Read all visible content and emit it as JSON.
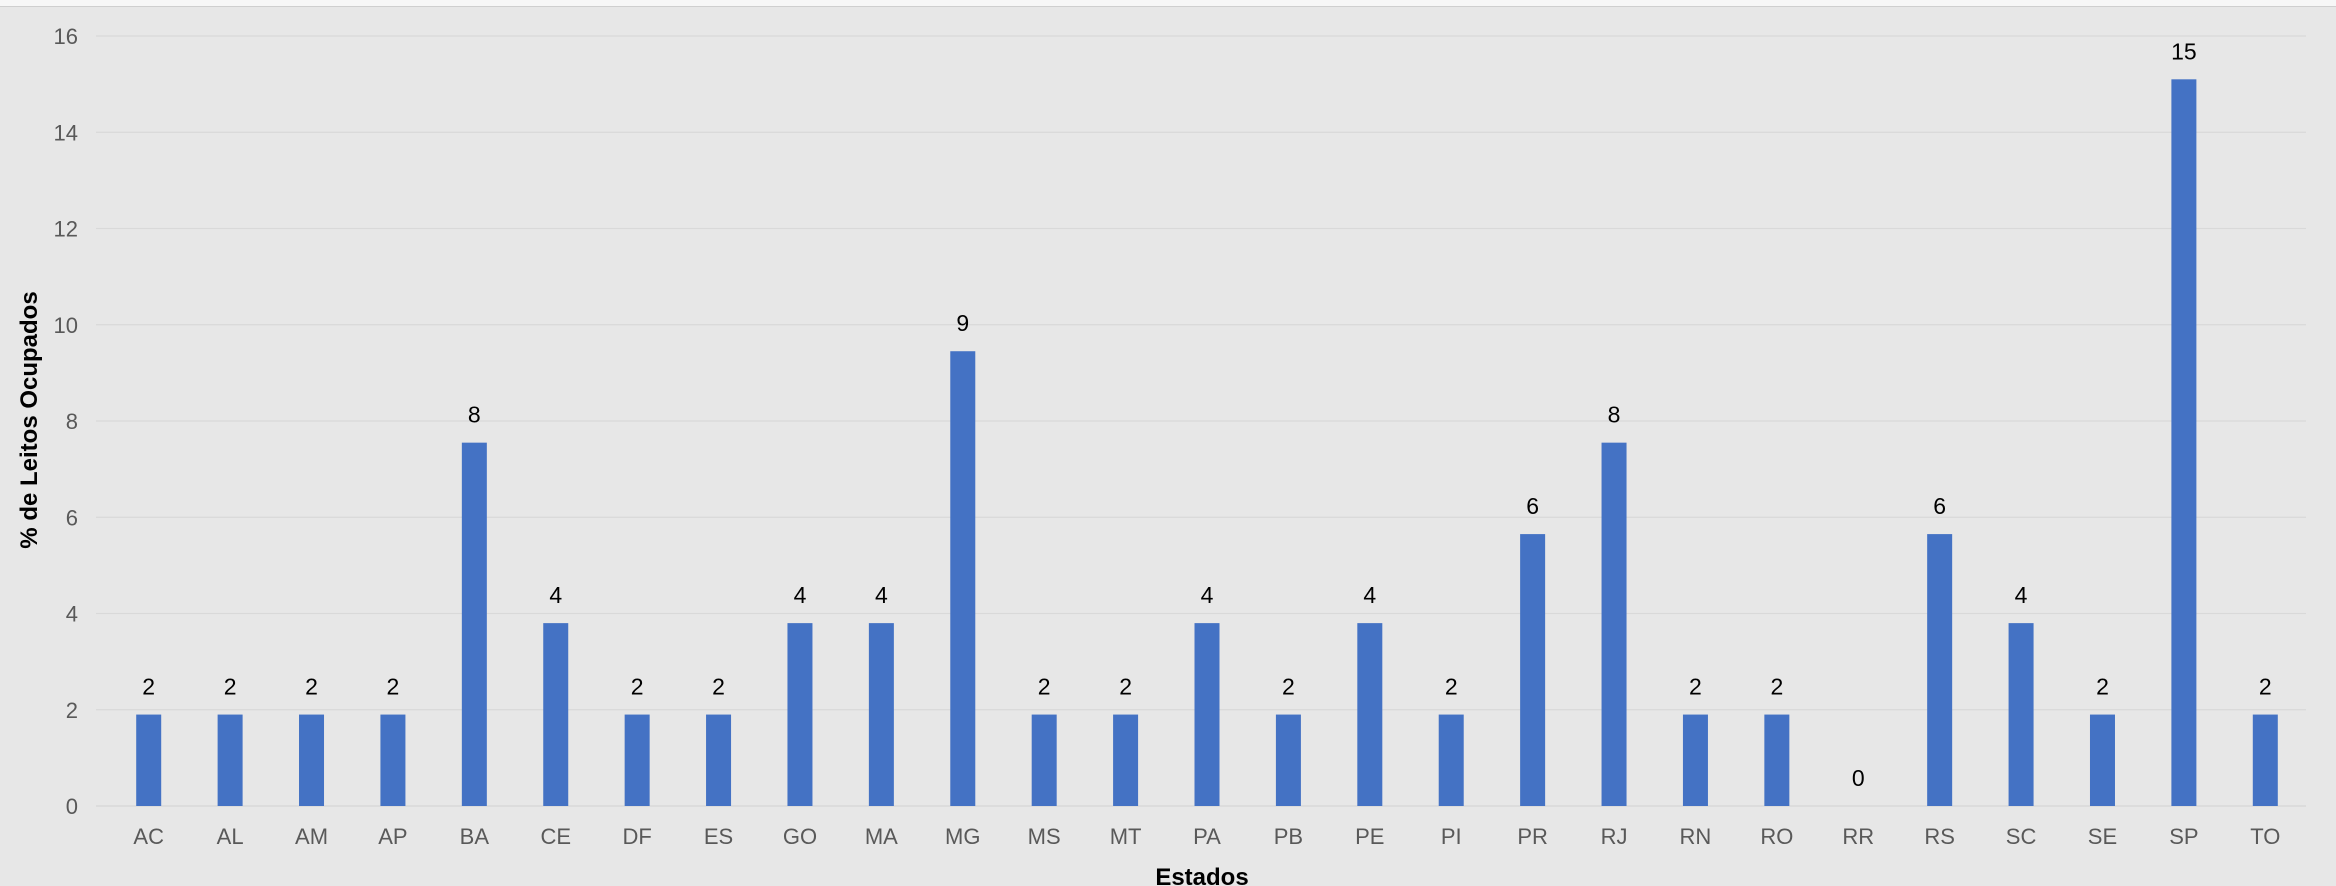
{
  "chart_data": {
    "type": "bar",
    "title": "",
    "xlabel": "Estados",
    "ylabel": "% de Leitos Ocupados",
    "categories": [
      "AC",
      "AL",
      "AM",
      "AP",
      "BA",
      "CE",
      "DF",
      "ES",
      "GO",
      "MA",
      "MG",
      "MS",
      "MT",
      "PA",
      "PB",
      "PE",
      "PI",
      "PR",
      "RJ",
      "RN",
      "RO",
      "RR",
      "RS",
      "SC",
      "SE",
      "SP",
      "TO"
    ],
    "values": [
      1.9,
      1.9,
      1.9,
      1.9,
      7.55,
      3.8,
      1.9,
      1.9,
      3.8,
      3.8,
      9.45,
      1.9,
      1.9,
      3.8,
      1.9,
      3.8,
      1.9,
      5.65,
      7.55,
      1.9,
      1.9,
      0,
      5.65,
      3.8,
      1.9,
      15.1,
      1.9
    ],
    "data_labels": [
      "2",
      "2",
      "2",
      "2",
      "8",
      "4",
      "2",
      "2",
      "4",
      "4",
      "9",
      "2",
      "2",
      "4",
      "2",
      "4",
      "2",
      "6",
      "8",
      "2",
      "2",
      "0",
      "6",
      "4",
      "2",
      "15",
      "2"
    ],
    "ylim": [
      0,
      16
    ],
    "yticks": [
      "0",
      "2",
      "4",
      "6",
      "8",
      "10",
      "12",
      "14",
      "16"
    ],
    "grid": true,
    "legend": "none",
    "colors": {
      "bar": "#4472c4",
      "grid": "#d9d9d9",
      "background": "#e7e7e7"
    }
  }
}
